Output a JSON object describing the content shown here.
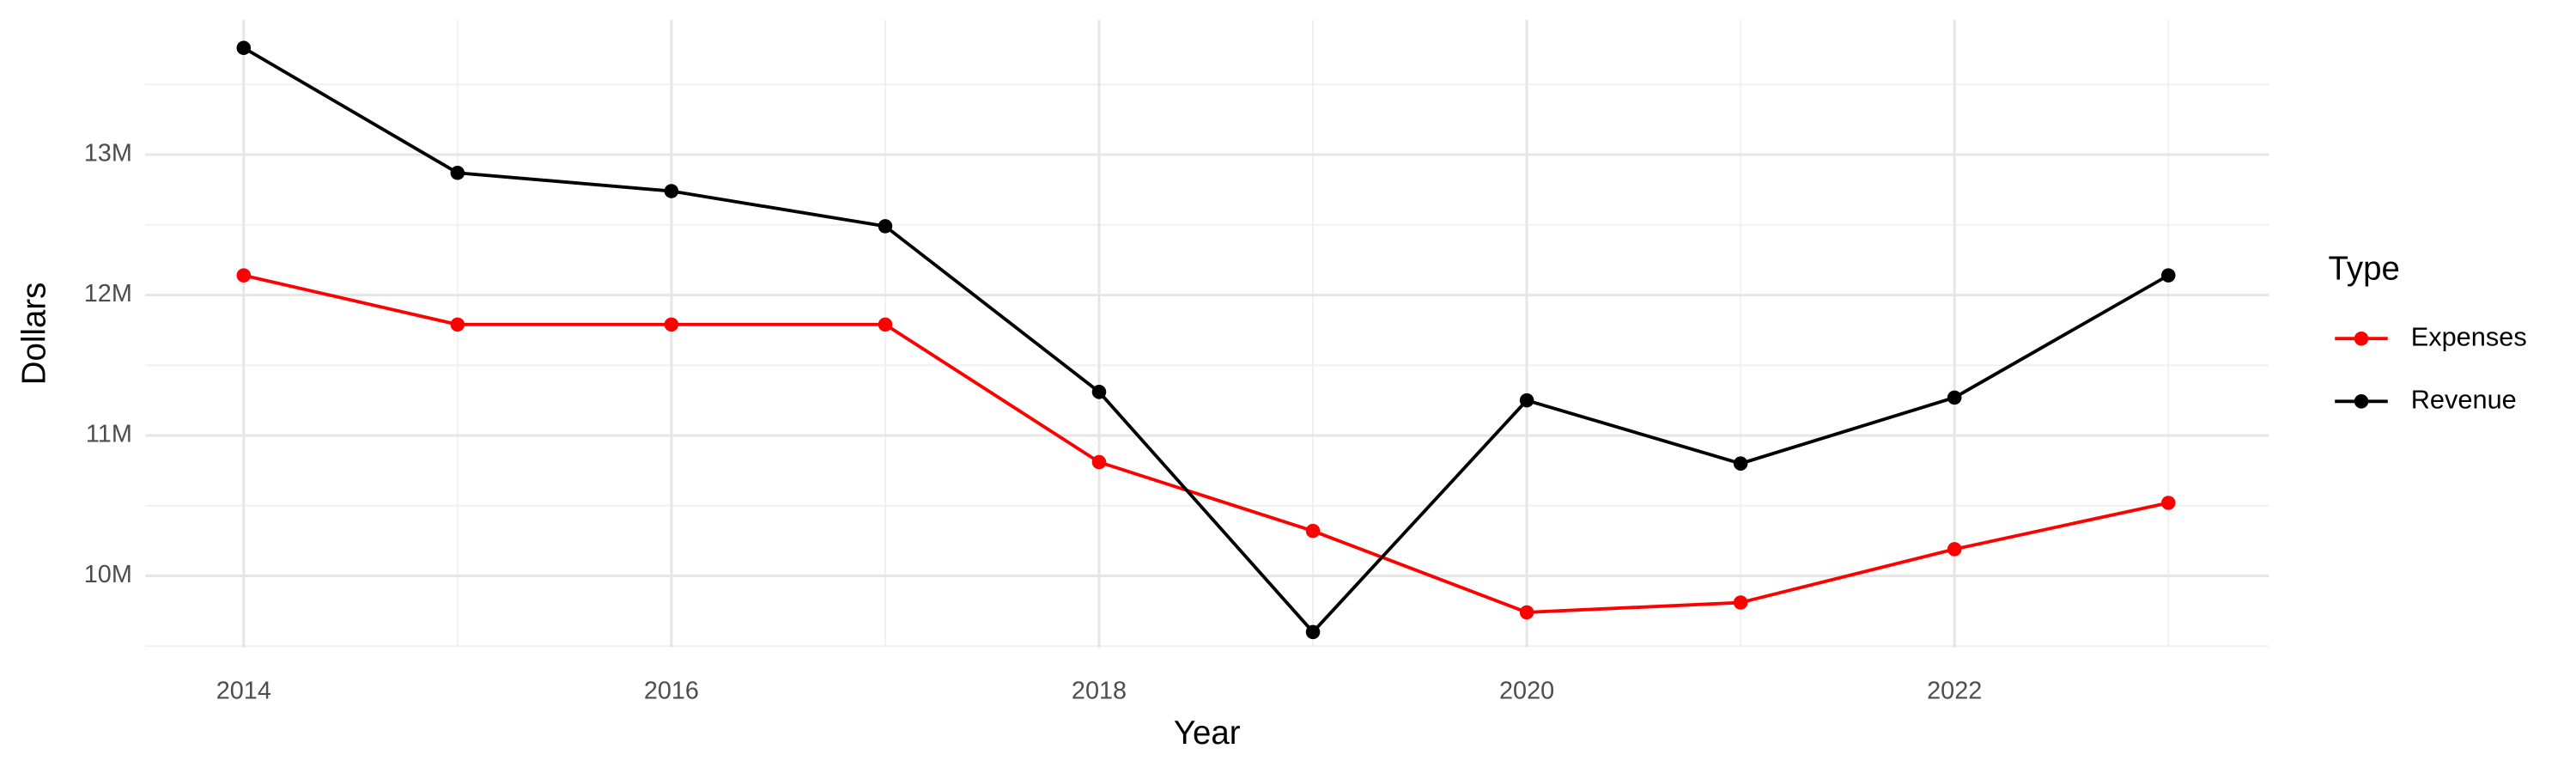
{
  "chart_data": {
    "type": "line",
    "x_label": "Year",
    "y_label": "Dollars",
    "x": [
      2014,
      2015,
      2016,
      2017,
      2018,
      2019,
      2020,
      2021,
      2022,
      2023
    ],
    "series": [
      {
        "name": "Expenses",
        "color": "#ff0000",
        "values": [
          12140000,
          11790000,
          11790000,
          11790000,
          10810000,
          10320000,
          9740000,
          9810000,
          10190000,
          10520000
        ]
      },
      {
        "name": "Revenue",
        "color": "#000000",
        "values": [
          13760000,
          12870000,
          12740000,
          12490000,
          11310000,
          9600000,
          11250000,
          10800000,
          11270000,
          12140000
        ]
      }
    ],
    "xlim": [
      2013.54,
      2023.47
    ],
    "xticks": [
      2014,
      2016,
      2018,
      2020,
      2022
    ],
    "ylim": [
      9490000,
      13960000
    ],
    "yticks": [
      {
        "value": 10000000,
        "label": "10M"
      },
      {
        "value": 11000000,
        "label": "11M"
      },
      {
        "value": 12000000,
        "label": "12M"
      },
      {
        "value": 13000000,
        "label": "13M"
      }
    ],
    "grid": true,
    "legend_title": "Type",
    "legend": "right"
  }
}
